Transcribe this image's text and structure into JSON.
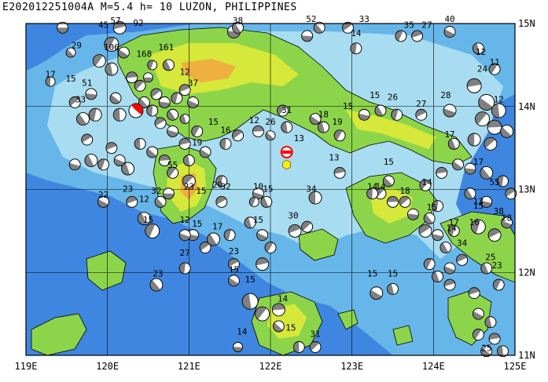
{
  "title": "E202012251004A  M=5.4  h= 10  LUZON, PHILIPPINES",
  "lon_labels": [
    "119E",
    "120E",
    "121E",
    "122E",
    "123E",
    "124E",
    "125E"
  ],
  "lat_labels": [
    "15N",
    "14N",
    "13N",
    "12N",
    "11N"
  ],
  "extent": {
    "lon": [
      119,
      125
    ],
    "lat": [
      11,
      15
    ]
  },
  "colors": {
    "deep": "#2f62c8",
    "mid": "#3f86e0",
    "shelf": "#67b6ea",
    "shallow": "#a8dcf0",
    "land_low": "#8cd54a",
    "land_mid": "#d6e83a",
    "land_high": "#f0b040",
    "peak": "#f07040",
    "grid": "#000000",
    "mech_dark": "#808080",
    "mech_light": "#ffffff",
    "target": "#ff0000",
    "epicenter": "#ffee00"
  },
  "main_event": {
    "lon": 120.35,
    "lat": 13.95,
    "depth_label": ""
  },
  "epicenter": {
    "lon": 122.2,
    "lat": 13.45
  },
  "cmt_labels": [
    {
      "lon": 119.3,
      "lat": 14.35,
      "text": "17"
    },
    {
      "lon": 119.62,
      "lat": 14.7,
      "text": "29"
    },
    {
      "lon": 119.55,
      "lat": 14.3,
      "text": "15"
    },
    {
      "lon": 119.75,
      "lat": 14.25,
      "text": "51"
    },
    {
      "lon": 119.67,
      "lat": 14.05,
      "text": "33"
    },
    {
      "lon": 119.95,
      "lat": 14.95,
      "text": "45"
    },
    {
      "lon": 120.1,
      "lat": 15.0,
      "text": "57"
    },
    {
      "lon": 120.38,
      "lat": 14.97,
      "text": "92"
    },
    {
      "lon": 120.05,
      "lat": 14.68,
      "text": "106"
    },
    {
      "lon": 120.45,
      "lat": 14.6,
      "text": "168"
    },
    {
      "lon": 120.72,
      "lat": 14.68,
      "text": "161"
    },
    {
      "lon": 120.95,
      "lat": 14.38,
      "text": "12"
    },
    {
      "lon": 121.05,
      "lat": 14.25,
      "text": "37"
    },
    {
      "lon": 121.3,
      "lat": 13.78,
      "text": "15"
    },
    {
      "lon": 121.1,
      "lat": 13.53,
      "text": "19"
    },
    {
      "lon": 121.45,
      "lat": 13.68,
      "text": "16"
    },
    {
      "lon": 120.8,
      "lat": 13.26,
      "text": "55"
    },
    {
      "lon": 121.0,
      "lat": 13.0,
      "text": "23"
    },
    {
      "lon": 120.6,
      "lat": 12.95,
      "text": "32"
    },
    {
      "lon": 121.45,
      "lat": 13.0,
      "text": "32"
    },
    {
      "lon": 121.85,
      "lat": 13.0,
      "text": "10"
    },
    {
      "lon": 121.97,
      "lat": 12.97,
      "text": "15"
    },
    {
      "lon": 122.5,
      "lat": 12.97,
      "text": "34"
    },
    {
      "lon": 122.28,
      "lat": 12.65,
      "text": "30"
    },
    {
      "lon": 121.85,
      "lat": 12.6,
      "text": "15"
    },
    {
      "lon": 122.35,
      "lat": 13.58,
      "text": "13"
    },
    {
      "lon": 122.78,
      "lat": 13.35,
      "text": "13"
    },
    {
      "lon": 122.65,
      "lat": 13.87,
      "text": "18"
    },
    {
      "lon": 122.82,
      "lat": 13.78,
      "text": "19"
    },
    {
      "lon": 122.2,
      "lat": 13.92,
      "text": "31"
    },
    {
      "lon": 121.8,
      "lat": 13.8,
      "text": "12"
    },
    {
      "lon": 122.0,
      "lat": 13.78,
      "text": "26"
    },
    {
      "lon": 122.95,
      "lat": 13.97,
      "text": "15"
    },
    {
      "lon": 123.28,
      "lat": 14.1,
      "text": "15"
    },
    {
      "lon": 123.5,
      "lat": 14.08,
      "text": "26"
    },
    {
      "lon": 123.85,
      "lat": 14.0,
      "text": "27"
    },
    {
      "lon": 124.15,
      "lat": 14.1,
      "text": "28"
    },
    {
      "lon": 124.2,
      "lat": 13.63,
      "text": "17"
    },
    {
      "lon": 124.55,
      "lat": 13.3,
      "text": "17"
    },
    {
      "lon": 124.6,
      "lat": 14.42,
      "text": "24"
    },
    {
      "lon": 124.75,
      "lat": 14.5,
      "text": "11"
    },
    {
      "lon": 124.58,
      "lat": 14.62,
      "text": "12"
    },
    {
      "lon": 124.8,
      "lat": 14.05,
      "text": "12"
    },
    {
      "lon": 123.05,
      "lat": 14.85,
      "text": "14"
    },
    {
      "lon": 123.15,
      "lat": 15.02,
      "text": "33"
    },
    {
      "lon": 123.7,
      "lat": 14.95,
      "text": "35"
    },
    {
      "lon": 123.92,
      "lat": 14.95,
      "text": "27"
    },
    {
      "lon": 124.2,
      "lat": 15.02,
      "text": "40"
    },
    {
      "lon": 121.6,
      "lat": 15.0,
      "text": "38"
    },
    {
      "lon": 122.5,
      "lat": 15.02,
      "text": "52"
    },
    {
      "lon": 121.35,
      "lat": 13.02,
      "text": "29"
    },
    {
      "lon": 121.15,
      "lat": 12.95,
      "text": "15"
    },
    {
      "lon": 120.25,
      "lat": 12.97,
      "text": "23"
    },
    {
      "lon": 119.95,
      "lat": 12.9,
      "text": "22"
    },
    {
      "lon": 120.45,
      "lat": 12.85,
      "text": "12"
    },
    {
      "lon": 120.5,
      "lat": 12.6,
      "text": "15"
    },
    {
      "lon": 120.95,
      "lat": 12.6,
      "text": "12"
    },
    {
      "lon": 121.1,
      "lat": 12.55,
      "text": "15"
    },
    {
      "lon": 121.35,
      "lat": 12.52,
      "text": "17"
    },
    {
      "lon": 121.55,
      "lat": 12.22,
      "text": "23"
    },
    {
      "lon": 120.95,
      "lat": 12.2,
      "text": "27"
    },
    {
      "lon": 120.62,
      "lat": 11.95,
      "text": "23"
    },
    {
      "lon": 121.55,
      "lat": 12.0,
      "text": "15"
    },
    {
      "lon": 121.75,
      "lat": 11.88,
      "text": "15"
    },
    {
      "lon": 122.15,
      "lat": 11.65,
      "text": "14"
    },
    {
      "lon": 121.65,
      "lat": 11.25,
      "text": "14"
    },
    {
      "lon": 122.25,
      "lat": 11.3,
      "text": "15"
    },
    {
      "lon": 122.55,
      "lat": 11.22,
      "text": "31"
    },
    {
      "lon": 123.25,
      "lat": 11.95,
      "text": "15"
    },
    {
      "lon": 123.5,
      "lat": 11.95,
      "text": "15"
    },
    {
      "lon": 123.25,
      "lat": 13.0,
      "text": "14"
    },
    {
      "lon": 123.35,
      "lat": 13.0,
      "text": "14"
    },
    {
      "lon": 123.65,
      "lat": 12.95,
      "text": "18"
    },
    {
      "lon": 123.45,
      "lat": 13.3,
      "text": "15"
    },
    {
      "lon": 123.92,
      "lat": 13.05,
      "text": "14"
    },
    {
      "lon": 123.98,
      "lat": 12.75,
      "text": "15"
    },
    {
      "lon": 124.25,
      "lat": 12.57,
      "text": "17"
    },
    {
      "lon": 124.35,
      "lat": 12.32,
      "text": "34"
    },
    {
      "lon": 124.5,
      "lat": 12.57,
      "text": "16"
    },
    {
      "lon": 124.55,
      "lat": 12.77,
      "text": "15"
    },
    {
      "lon": 124.55,
      "lat": 12.82,
      "text": "13"
    },
    {
      "lon": 124.75,
      "lat": 13.05,
      "text": "55"
    },
    {
      "lon": 124.9,
      "lat": 12.62,
      "text": "28"
    },
    {
      "lon": 124.8,
      "lat": 12.7,
      "text": "38"
    },
    {
      "lon": 124.7,
      "lat": 12.15,
      "text": "25"
    },
    {
      "lon": 124.78,
      "lat": 12.05,
      "text": "23"
    },
    {
      "lon": 124.65,
      "lat": 11.05,
      "text": "25"
    },
    {
      "lon": 124.22,
      "lat": 12.5,
      "text": "14"
    }
  ],
  "mechanisms": [
    {
      "lon": 119.45,
      "lat": 14.95,
      "r": 7
    },
    {
      "lon": 119.55,
      "lat": 14.65,
      "r": 6
    },
    {
      "lon": 119.3,
      "lat": 14.3,
      "r": 6
    },
    {
      "lon": 119.6,
      "lat": 14.05,
      "r": 7
    },
    {
      "lon": 119.8,
      "lat": 14.15,
      "r": 7
    },
    {
      "lon": 119.7,
      "lat": 13.85,
      "r": 8
    },
    {
      "lon": 119.85,
      "lat": 13.9,
      "r": 8
    },
    {
      "lon": 119.75,
      "lat": 13.6,
      "r": 7
    },
    {
      "lon": 119.6,
      "lat": 13.3,
      "r": 7
    },
    {
      "lon": 119.8,
      "lat": 13.35,
      "r": 8
    },
    {
      "lon": 119.95,
      "lat": 13.3,
      "r": 7
    },
    {
      "lon": 120.05,
      "lat": 13.5,
      "r": 7
    },
    {
      "lon": 120.15,
      "lat": 13.35,
      "r": 7
    },
    {
      "lon": 120.25,
      "lat": 13.25,
      "r": 8
    },
    {
      "lon": 120.05,
      "lat": 14.75,
      "r": 9
    },
    {
      "lon": 120.15,
      "lat": 14.95,
      "r": 8
    },
    {
      "lon": 120.2,
      "lat": 14.65,
      "r": 7
    },
    {
      "lon": 120.05,
      "lat": 14.45,
      "r": 8
    },
    {
      "lon": 119.9,
      "lat": 14.55,
      "r": 8
    },
    {
      "lon": 120.3,
      "lat": 14.35,
      "r": 7
    },
    {
      "lon": 120.1,
      "lat": 14.1,
      "r": 7
    },
    {
      "lon": 120.15,
      "lat": 13.9,
      "r": 8
    },
    {
      "lon": 120.4,
      "lat": 14.25,
      "r": 7
    },
    {
      "lon": 120.5,
      "lat": 14.35,
      "r": 6
    },
    {
      "lon": 120.45,
      "lat": 14.05,
      "r": 7
    },
    {
      "lon": 120.55,
      "lat": 13.95,
      "r": 7
    },
    {
      "lon": 120.6,
      "lat": 14.15,
      "r": 7
    },
    {
      "lon": 120.7,
      "lat": 14.05,
      "r": 7
    },
    {
      "lon": 120.8,
      "lat": 13.9,
      "r": 7
    },
    {
      "lon": 120.85,
      "lat": 14.1,
      "r": 7
    },
    {
      "lon": 120.65,
      "lat": 13.8,
      "r": 7
    },
    {
      "lon": 120.8,
      "lat": 13.7,
      "r": 7
    },
    {
      "lon": 120.75,
      "lat": 14.5,
      "r": 7
    },
    {
      "lon": 120.55,
      "lat": 14.5,
      "r": 6
    },
    {
      "lon": 120.95,
      "lat": 14.2,
      "r": 7
    },
    {
      "lon": 121.05,
      "lat": 14.05,
      "r": 7
    },
    {
      "lon": 120.95,
      "lat": 13.85,
      "r": 6
    },
    {
      "lon": 121.1,
      "lat": 13.7,
      "r": 7
    },
    {
      "lon": 120.95,
      "lat": 13.55,
      "r": 7
    },
    {
      "lon": 121.2,
      "lat": 13.45,
      "r": 7
    },
    {
      "lon": 121.0,
      "lat": 13.35,
      "r": 7
    },
    {
      "lon": 120.8,
      "lat": 13.2,
      "r": 7
    },
    {
      "lon": 120.7,
      "lat": 13.35,
      "r": 7
    },
    {
      "lon": 120.55,
      "lat": 13.45,
      "r": 7
    },
    {
      "lon": 120.4,
      "lat": 13.55,
      "r": 7
    },
    {
      "lon": 121.0,
      "lat": 13.1,
      "r": 8
    },
    {
      "lon": 120.75,
      "lat": 12.95,
      "r": 7
    },
    {
      "lon": 120.65,
      "lat": 12.85,
      "r": 7
    },
    {
      "lon": 121.45,
      "lat": 13.55,
      "r": 7
    },
    {
      "lon": 121.6,
      "lat": 13.65,
      "r": 7
    },
    {
      "lon": 121.55,
      "lat": 14.9,
      "r": 8
    },
    {
      "lon": 121.6,
      "lat": 14.95,
      "r": 7
    },
    {
      "lon": 121.4,
      "lat": 13.1,
      "r": 7
    },
    {
      "lon": 121.4,
      "lat": 12.85,
      "r": 7
    },
    {
      "lon": 121.85,
      "lat": 12.95,
      "r": 7
    },
    {
      "lon": 121.95,
      "lat": 12.85,
      "r": 7
    },
    {
      "lon": 121.8,
      "lat": 12.85,
      "r": 6
    },
    {
      "lon": 122.3,
      "lat": 12.5,
      "r": 8
    },
    {
      "lon": 121.9,
      "lat": 12.45,
      "r": 7
    },
    {
      "lon": 121.75,
      "lat": 12.6,
      "r": 7
    },
    {
      "lon": 122.0,
      "lat": 12.3,
      "r": 7
    },
    {
      "lon": 121.9,
      "lat": 12.1,
      "r": 8
    },
    {
      "lon": 121.55,
      "lat": 11.9,
      "r": 7
    },
    {
      "lon": 121.75,
      "lat": 11.65,
      "r": 10
    },
    {
      "lon": 121.9,
      "lat": 11.5,
      "r": 9
    },
    {
      "lon": 122.1,
      "lat": 11.55,
      "r": 8
    },
    {
      "lon": 122.1,
      "lat": 11.35,
      "r": 7
    },
    {
      "lon": 122.35,
      "lat": 11.1,
      "r": 7
    },
    {
      "lon": 122.55,
      "lat": 11.1,
      "r": 7
    },
    {
      "lon": 121.6,
      "lat": 11.1,
      "r": 6
    },
    {
      "lon": 120.6,
      "lat": 11.85,
      "r": 8
    },
    {
      "lon": 120.95,
      "lat": 12.05,
      "r": 7
    },
    {
      "lon": 121.2,
      "lat": 12.3,
      "r": 7
    },
    {
      "lon": 121.05,
      "lat": 12.45,
      "r": 7
    },
    {
      "lon": 121.3,
      "lat": 12.4,
      "r": 8
    },
    {
      "lon": 121.5,
      "lat": 12.45,
      "r": 7
    },
    {
      "lon": 121.55,
      "lat": 12.1,
      "r": 7
    },
    {
      "lon": 120.95,
      "lat": 12.45,
      "r": 7
    },
    {
      "lon": 120.45,
      "lat": 12.65,
      "r": 8
    },
    {
      "lon": 120.55,
      "lat": 12.5,
      "r": 9
    },
    {
      "lon": 120.3,
      "lat": 12.85,
      "r": 7
    },
    {
      "lon": 119.95,
      "lat": 12.85,
      "r": 7
    },
    {
      "lon": 122.65,
      "lat": 13.75,
      "r": 7
    },
    {
      "lon": 122.85,
      "lat": 13.65,
      "r": 7
    },
    {
      "lon": 122.85,
      "lat": 13.2,
      "r": 7
    },
    {
      "lon": 122.55,
      "lat": 13.85,
      "r": 7
    },
    {
      "lon": 122.2,
      "lat": 13.75,
      "r": 7
    },
    {
      "lon": 122.15,
      "lat": 13.95,
      "r": 7
    },
    {
      "lon": 121.85,
      "lat": 13.7,
      "r": 7
    },
    {
      "lon": 122.0,
      "lat": 13.65,
      "r": 6
    },
    {
      "lon": 122.55,
      "lat": 12.9,
      "r": 8
    },
    {
      "lon": 122.45,
      "lat": 12.55,
      "r": 7
    },
    {
      "lon": 122.45,
      "lat": 14.85,
      "r": 7
    },
    {
      "lon": 122.6,
      "lat": 14.95,
      "r": 7
    },
    {
      "lon": 123.05,
      "lat": 14.7,
      "r": 7
    },
    {
      "lon": 122.95,
      "lat": 14.95,
      "r": 7
    },
    {
      "lon": 123.15,
      "lat": 13.9,
      "r": 7
    },
    {
      "lon": 123.35,
      "lat": 13.95,
      "r": 7
    },
    {
      "lon": 123.55,
      "lat": 13.9,
      "r": 7
    },
    {
      "lon": 123.85,
      "lat": 13.9,
      "r": 7
    },
    {
      "lon": 124.2,
      "lat": 13.95,
      "r": 8
    },
    {
      "lon": 124.25,
      "lat": 13.55,
      "r": 7
    },
    {
      "lon": 123.6,
      "lat": 14.85,
      "r": 7
    },
    {
      "lon": 123.8,
      "lat": 14.85,
      "r": 7
    },
    {
      "lon": 124.2,
      "lat": 14.9,
      "r": 7
    },
    {
      "lon": 124.55,
      "lat": 14.7,
      "r": 7
    },
    {
      "lon": 124.75,
      "lat": 14.45,
      "r": 7
    },
    {
      "lon": 124.5,
      "lat": 14.25,
      "r": 9
    },
    {
      "lon": 124.65,
      "lat": 14.05,
      "r": 10
    },
    {
      "lon": 124.8,
      "lat": 13.95,
      "r": 9
    },
    {
      "lon": 124.6,
      "lat": 13.85,
      "r": 9
    },
    {
      "lon": 124.75,
      "lat": 13.75,
      "r": 9
    },
    {
      "lon": 124.9,
      "lat": 13.7,
      "r": 8
    },
    {
      "lon": 124.5,
      "lat": 13.6,
      "r": 8
    },
    {
      "lon": 124.7,
      "lat": 13.55,
      "r": 8
    },
    {
      "lon": 124.45,
      "lat": 13.25,
      "r": 7
    },
    {
      "lon": 124.65,
      "lat": 13.2,
      "r": 8
    },
    {
      "lon": 124.85,
      "lat": 13.1,
      "r": 7
    },
    {
      "lon": 124.95,
      "lat": 12.95,
      "r": 7
    },
    {
      "lon": 124.65,
      "lat": 12.85,
      "r": 7
    },
    {
      "lon": 124.45,
      "lat": 12.95,
      "r": 7
    },
    {
      "lon": 124.55,
      "lat": 12.55,
      "r": 9
    },
    {
      "lon": 124.75,
      "lat": 12.45,
      "r": 8
    },
    {
      "lon": 124.9,
      "lat": 12.6,
      "r": 7
    },
    {
      "lon": 124.65,
      "lat": 12.05,
      "r": 7
    },
    {
      "lon": 124.8,
      "lat": 11.85,
      "r": 7
    },
    {
      "lon": 124.5,
      "lat": 11.75,
      "r": 7
    },
    {
      "lon": 124.55,
      "lat": 11.5,
      "r": 7
    },
    {
      "lon": 124.7,
      "lat": 11.4,
      "r": 7
    },
    {
      "lon": 124.55,
      "lat": 11.25,
      "r": 7
    },
    {
      "lon": 124.75,
      "lat": 11.2,
      "r": 7
    },
    {
      "lon": 124.65,
      "lat": 11.05,
      "r": 7
    },
    {
      "lon": 124.85,
      "lat": 11.05,
      "r": 7
    },
    {
      "lon": 123.35,
      "lat": 12.95,
      "r": 7
    },
    {
      "lon": 123.5,
      "lat": 12.85,
      "r": 7
    },
    {
      "lon": 123.45,
      "lat": 13.1,
      "r": 7
    },
    {
      "lon": 123.25,
      "lat": 12.95,
      "r": 7
    },
    {
      "lon": 123.65,
      "lat": 12.85,
      "r": 7
    },
    {
      "lon": 123.75,
      "lat": 12.7,
      "r": 7
    },
    {
      "lon": 123.95,
      "lat": 12.65,
      "r": 7
    },
    {
      "lon": 124.05,
      "lat": 12.8,
      "r": 7
    },
    {
      "lon": 123.9,
      "lat": 12.5,
      "r": 8
    },
    {
      "lon": 124.05,
      "lat": 12.45,
      "r": 7
    },
    {
      "lon": 124.15,
      "lat": 12.3,
      "r": 7
    },
    {
      "lon": 124.25,
      "lat": 12.5,
      "r": 7
    },
    {
      "lon": 124.35,
      "lat": 12.15,
      "r": 7
    },
    {
      "lon": 124.2,
      "lat": 12.05,
      "r": 7
    },
    {
      "lon": 124.05,
      "lat": 11.95,
      "r": 7
    },
    {
      "lon": 123.95,
      "lat": 12.1,
      "r": 7
    },
    {
      "lon": 124.2,
      "lat": 11.85,
      "r": 7
    },
    {
      "lon": 123.3,
      "lat": 11.75,
      "r": 8
    },
    {
      "lon": 123.5,
      "lat": 11.8,
      "r": 7
    },
    {
      "lon": 123.9,
      "lat": 13.05,
      "r": 7
    },
    {
      "lon": 124.1,
      "lat": 13.2,
      "r": 7
    },
    {
      "lon": 124.3,
      "lat": 13.3,
      "r": 7
    }
  ]
}
